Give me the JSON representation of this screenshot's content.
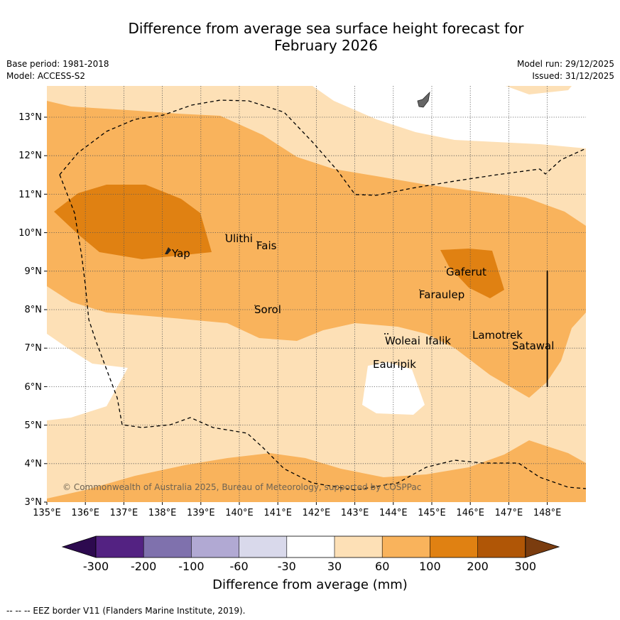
{
  "title": {
    "line1": "Difference from average sea surface height forecast for",
    "line2": "February 2026"
  },
  "meta": {
    "base_period": "Base period: 1981-2018",
    "model": "Model: ACCESS-S2",
    "model_run": "Model run: 29/12/2025",
    "issued": "Issued: 31/12/2025"
  },
  "axes": {
    "lon_labels": [
      "135°E",
      "136°E",
      "137°E",
      "138°E",
      "139°E",
      "140°E",
      "141°E",
      "142°E",
      "143°E",
      "144°E",
      "145°E",
      "146°E",
      "147°E",
      "148°E"
    ],
    "lat_labels": [
      "3°N",
      "4°N",
      "5°N",
      "6°N",
      "7°N",
      "8°N",
      "9°N",
      "10°N",
      "11°N",
      "12°N",
      "13°N"
    ]
  },
  "places": [
    {
      "name": "Yap"
    },
    {
      "name": "Ulithi"
    },
    {
      "name": "Fais"
    },
    {
      "name": "Gaferut"
    },
    {
      "name": "Faraulep"
    },
    {
      "name": "Sorol"
    },
    {
      "name": "Woleai"
    },
    {
      "name": "Ifalik"
    },
    {
      "name": "Lamotrek"
    },
    {
      "name": "Satawal"
    },
    {
      "name": "Eauripik"
    }
  ],
  "copyright": "© Commonwealth of Australia 2025, Bureau of Meteorology, supported by COSPPac",
  "colorbar": {
    "ticks": [
      "-300",
      "-200",
      "-100",
      "-60",
      "-30",
      "30",
      "60",
      "100",
      "200",
      "300"
    ],
    "colors": [
      "#2d0a4f",
      "#532282",
      "#7f71ad",
      "#b1a9d3",
      "#d9d9eb",
      "#ffffff",
      "#fde0b6",
      "#f9b35c",
      "#e08112",
      "#b05606",
      "#7a3c0f"
    ],
    "label": "Difference from average (mm)"
  },
  "legend_note": "--  --  -- EEZ border V11 (Flanders Marine Institute, 2019)."
}
